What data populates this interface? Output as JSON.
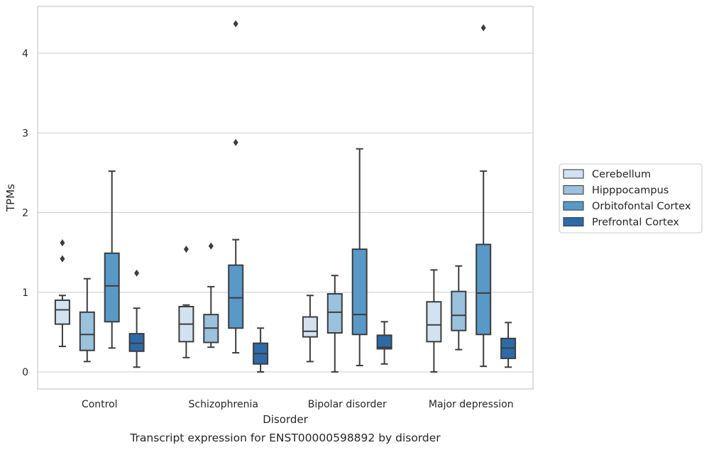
{
  "chart_data": {
    "type": "box",
    "caption": "Transcript expression for ENST00000598892 by disorder",
    "xlabel": "Disorder",
    "ylabel": "TPMs",
    "ylim": [
      -0.2,
      4.6
    ],
    "yticks": [
      0,
      1,
      2,
      3,
      4
    ],
    "grid": "horizontal",
    "legend_position": "right",
    "categories": [
      "Control",
      "Schizophrenia",
      "Bipolar disorder",
      "Major depression"
    ],
    "series": [
      {
        "name": "Cerebellum",
        "color": "#d2e2f1",
        "boxes": [
          {
            "whislo": 0.32,
            "q1": 0.6,
            "med": 0.78,
            "q3": 0.9,
            "whishi": 0.96,
            "fliers": [
              1.62,
              1.42
            ]
          },
          {
            "whislo": 0.18,
            "q1": 0.38,
            "med": 0.6,
            "q3": 0.82,
            "whishi": 0.84,
            "fliers": [
              1.54
            ]
          },
          {
            "whislo": 0.13,
            "q1": 0.44,
            "med": 0.51,
            "q3": 0.69,
            "whishi": 0.96,
            "fliers": []
          },
          {
            "whislo": 0.0,
            "q1": 0.38,
            "med": 0.59,
            "q3": 0.88,
            "whishi": 1.28,
            "fliers": []
          }
        ]
      },
      {
        "name": "Hipppocampus",
        "color": "#9ac1dd",
        "boxes": [
          {
            "whislo": 0.13,
            "q1": 0.27,
            "med": 0.47,
            "q3": 0.75,
            "whishi": 1.17,
            "fliers": []
          },
          {
            "whislo": 0.31,
            "q1": 0.37,
            "med": 0.55,
            "q3": 0.72,
            "whishi": 1.07,
            "fliers": [
              1.58
            ]
          },
          {
            "whislo": 0.0,
            "q1": 0.49,
            "med": 0.75,
            "q3": 0.98,
            "whishi": 1.21,
            "fliers": []
          },
          {
            "whislo": 0.28,
            "q1": 0.52,
            "med": 0.71,
            "q3": 1.01,
            "whishi": 1.33,
            "fliers": []
          }
        ]
      },
      {
        "name": "Orbitofontal Cortex",
        "color": "#5899c8",
        "boxes": [
          {
            "whislo": 0.3,
            "q1": 0.63,
            "med": 1.08,
            "q3": 1.49,
            "whishi": 2.52,
            "fliers": []
          },
          {
            "whislo": 0.24,
            "q1": 0.55,
            "med": 0.93,
            "q3": 1.34,
            "whishi": 1.66,
            "fliers": [
              4.37,
              2.88
            ]
          },
          {
            "whislo": 0.08,
            "q1": 0.47,
            "med": 0.72,
            "q3": 1.54,
            "whishi": 2.8,
            "fliers": []
          },
          {
            "whislo": 0.07,
            "q1": 0.47,
            "med": 0.99,
            "q3": 1.6,
            "whishi": 2.52,
            "fliers": [
              4.32
            ]
          }
        ]
      },
      {
        "name": "Prefrontal Cortex",
        "color": "#2c6ba8",
        "boxes": [
          {
            "whislo": 0.06,
            "q1": 0.26,
            "med": 0.36,
            "q3": 0.48,
            "whishi": 0.8,
            "fliers": [
              1.24
            ]
          },
          {
            "whislo": 0.0,
            "q1": 0.1,
            "med": 0.23,
            "q3": 0.36,
            "whishi": 0.55,
            "fliers": []
          },
          {
            "whislo": 0.1,
            "q1": 0.29,
            "med": 0.31,
            "q3": 0.46,
            "whishi": 0.63,
            "fliers": []
          },
          {
            "whislo": 0.06,
            "q1": 0.17,
            "med": 0.3,
            "q3": 0.42,
            "whishi": 0.62,
            "fliers": []
          }
        ]
      }
    ]
  }
}
